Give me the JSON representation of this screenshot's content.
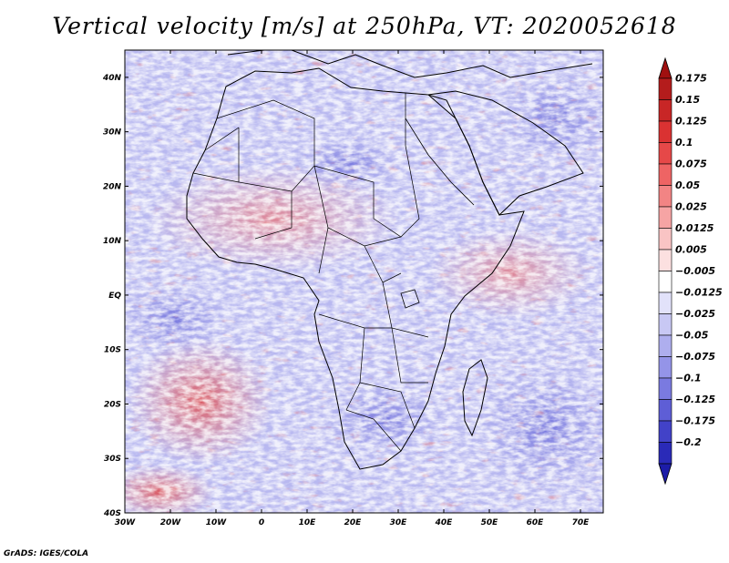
{
  "title": "Vertical velocity [m/s] at 250hPa, VT: 2020052618",
  "credit": "GrADS: IGES/COLA",
  "map": {
    "variable": "Vertical velocity",
    "units": "m/s",
    "level": "250hPa",
    "valid_time": "2020052618",
    "lon_range": [
      -30,
      75
    ],
    "lat_range": [
      -40,
      45
    ],
    "x_ticks": [
      {
        "lon": -30,
        "label": "30W"
      },
      {
        "lon": -20,
        "label": "20W"
      },
      {
        "lon": -10,
        "label": "10W"
      },
      {
        "lon": 0,
        "label": "0"
      },
      {
        "lon": 10,
        "label": "10E"
      },
      {
        "lon": 20,
        "label": "20E"
      },
      {
        "lon": 30,
        "label": "30E"
      },
      {
        "lon": 40,
        "label": "40E"
      },
      {
        "lon": 50,
        "label": "50E"
      },
      {
        "lon": 60,
        "label": "60E"
      },
      {
        "lon": 70,
        "label": "70E"
      }
    ],
    "y_ticks": [
      {
        "lat": 40,
        "label": "40N"
      },
      {
        "lat": 30,
        "label": "30N"
      },
      {
        "lat": 20,
        "label": "20N"
      },
      {
        "lat": 10,
        "label": "10N"
      },
      {
        "lat": 0,
        "label": "EQ"
      },
      {
        "lat": -10,
        "label": "10S"
      },
      {
        "lat": -20,
        "label": "20S"
      },
      {
        "lat": -30,
        "label": "30S"
      },
      {
        "lat": -40,
        "label": "40S"
      }
    ]
  },
  "colorbar": {
    "entries": [
      {
        "label": "0.175",
        "color": "#b41c1c"
      },
      {
        "label": "0.15",
        "color": "#c82626"
      },
      {
        "label": "0.125",
        "color": "#da3232"
      },
      {
        "label": "0.1",
        "color": "#e64848"
      },
      {
        "label": "0.075",
        "color": "#ee6464"
      },
      {
        "label": "0.05",
        "color": "#f28484"
      },
      {
        "label": "0.025",
        "color": "#f6a4a4"
      },
      {
        "label": "0.0125",
        "color": "#f9c4c4"
      },
      {
        "label": "0.005",
        "color": "#fce0e0"
      },
      {
        "label": "−0.005",
        "color": "#ffffff"
      },
      {
        "label": "−0.0125",
        "color": "#e2e2fa"
      },
      {
        "label": "−0.025",
        "color": "#c8c8f4"
      },
      {
        "label": "−0.05",
        "color": "#aeaeee"
      },
      {
        "label": "−0.075",
        "color": "#9494e8"
      },
      {
        "label": "−0.1",
        "color": "#7a7ae0"
      },
      {
        "label": "−0.125",
        "color": "#5e5ed6"
      },
      {
        "label": "−0.175",
        "color": "#4242c8"
      },
      {
        "label": "−0.2",
        "color": "#2a2ab8"
      }
    ],
    "top_color": "#a01010",
    "bottom_color": "#1c1ca8"
  }
}
